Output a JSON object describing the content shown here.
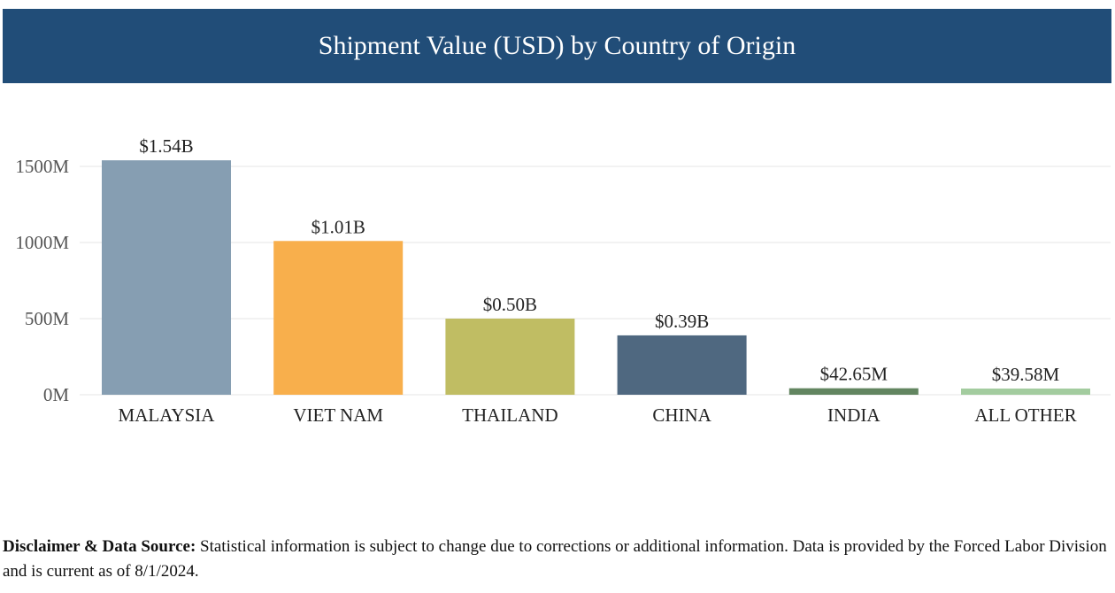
{
  "header": {
    "title": "Shipment Value (USD) by Country of Origin"
  },
  "chart_data": {
    "type": "bar",
    "title": "Shipment Value (USD) by Country of Origin",
    "xlabel": "",
    "ylabel": "",
    "categories": [
      "MALAYSIA",
      "VIET NAM",
      "THAILAND",
      "CHINA",
      "INDIA",
      "ALL OTHER"
    ],
    "values": [
      1540,
      1010,
      500,
      390,
      42.65,
      39.58
    ],
    "value_unit": "M USD",
    "data_labels": [
      "$1.54B",
      "$1.01B",
      "$0.50B",
      "$0.39B",
      "$42.65M",
      "$39.58M"
    ],
    "colors": [
      "#869eb2",
      "#f8af4c",
      "#c0bd63",
      "#4f6880",
      "#628560",
      "#a3cc9f"
    ],
    "yticks": [
      0,
      500,
      1000,
      1500
    ],
    "ytick_labels": [
      "0M",
      "500M",
      "1000M",
      "1500M"
    ],
    "ylim": [
      0,
      1500
    ],
    "grid": true,
    "legend": "none"
  },
  "footer": {
    "label": "Disclaimer & Data Source:",
    "text": "Statistical information is subject to change due to corrections or additional information. Data is provided by the Forced Labor Division and is current as of 8/1/2024."
  }
}
